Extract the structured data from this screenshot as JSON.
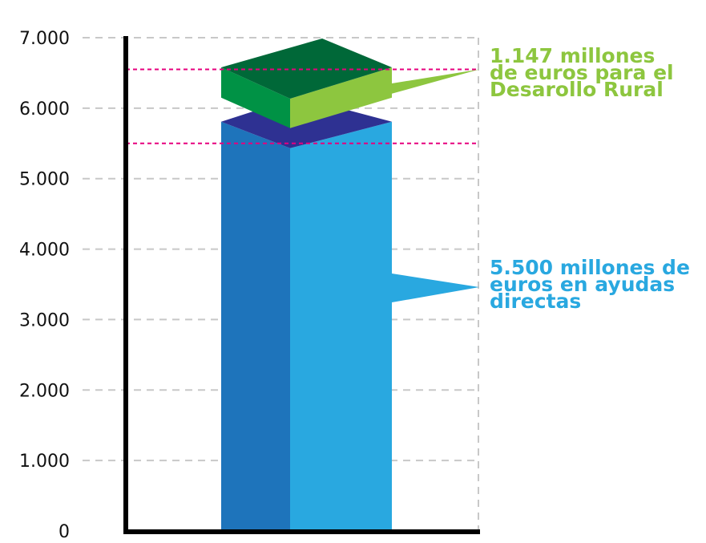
{
  "chart_data": {
    "type": "bar",
    "title": "",
    "xlabel": "",
    "ylabel": "",
    "ylim": [
      0,
      7000
    ],
    "y_ticks": [
      "0",
      "1.000",
      "2.000",
      "3.000",
      "4.000",
      "5.000",
      "6.000",
      "7.000"
    ],
    "y_tick_values": [
      0,
      1000,
      2000,
      3000,
      4000,
      5000,
      6000,
      7000
    ],
    "grid": true,
    "stacked": true,
    "three_d": true,
    "categories": [
      ""
    ],
    "series": [
      {
        "name": "",
        "values": [
          5500
        ],
        "color": "#29a8e0",
        "dark_color": "#1e74bb",
        "top_color": "#2e3192"
      },
      {
        "name": "",
        "values": [
          1147
        ],
        "color": "#8dc63f",
        "dark_color": "#009245",
        "top_color": "#006838"
      }
    ],
    "reference_lines": {
      "color": "#e6007e",
      "values": [
        5500,
        6550
      ]
    },
    "annotations": [
      {
        "series_index": 1,
        "color": "#8dc63f",
        "lines": [
          "1.147 millones",
          "de euros para el",
          "Desarollo Rural"
        ]
      },
      {
        "series_index": 0,
        "color": "#29a8e0",
        "lines": [
          "5.500 millones de",
          "euros en ayudas",
          "directas"
        ]
      }
    ]
  }
}
